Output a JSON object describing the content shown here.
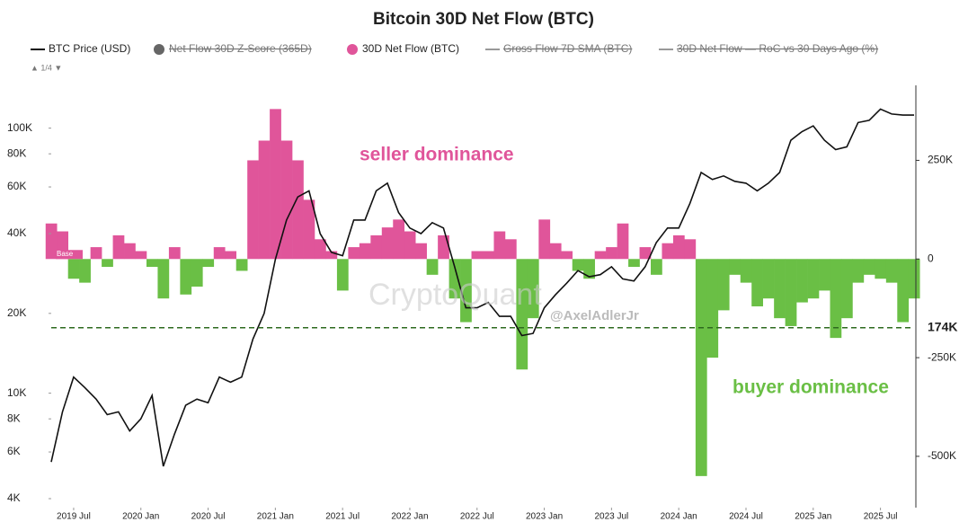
{
  "chart_data": {
    "type": "dual-axis",
    "title": "Bitcoin 30D Net Flow (BTC)",
    "pager": "▲ 1/4 ▼",
    "inactive_legend": [
      "Net Flow 30D Z-Score (365D)",
      "Gross Flow 7D SMA (BTC)",
      "30D Net Flow — RoC vs 30 Days Ago (%)"
    ],
    "annotations": [
      "seller dominance",
      "buyer dominance",
      "Base"
    ],
    "watermarks": [
      "CryptoQuant",
      "@AxelAdlerJr"
    ],
    "reference_line": {
      "value": -174000,
      "label": "174K"
    },
    "x": [
      "2019-05",
      "2019-06",
      "2019-07",
      "2019-08",
      "2019-09",
      "2019-10",
      "2019-11",
      "2019-12",
      "2020-01",
      "2020-02",
      "2020-03",
      "2020-04",
      "2020-05",
      "2020-06",
      "2020-07",
      "2020-08",
      "2020-09",
      "2020-10",
      "2020-11",
      "2020-12",
      "2021-01",
      "2021-02",
      "2021-03",
      "2021-04",
      "2021-05",
      "2021-06",
      "2021-07",
      "2021-08",
      "2021-09",
      "2021-10",
      "2021-11",
      "2021-12",
      "2022-01",
      "2022-02",
      "2022-03",
      "2022-04",
      "2022-05",
      "2022-06",
      "2022-07",
      "2022-08",
      "2022-09",
      "2022-10",
      "2022-11",
      "2022-12",
      "2023-01",
      "2023-02",
      "2023-03",
      "2023-04",
      "2023-05",
      "2023-06",
      "2023-07",
      "2023-08",
      "2023-09",
      "2023-10",
      "2023-11",
      "2023-12",
      "2024-01",
      "2024-02",
      "2024-03",
      "2024-04",
      "2024-05",
      "2024-06",
      "2024-07",
      "2024-08",
      "2024-09",
      "2024-10",
      "2024-11",
      "2024-12",
      "2025-01",
      "2025-02",
      "2025-03",
      "2025-04",
      "2025-05",
      "2025-06",
      "2025-07",
      "2025-08",
      "2025-09",
      "2025-10"
    ],
    "xlim": [
      "2019-05",
      "2025-10"
    ],
    "xticks": [
      {
        "value": "2019-07",
        "label": "2019 Jul"
      },
      {
        "value": "2020-01",
        "label": "2020 Jan"
      },
      {
        "value": "2020-07",
        "label": "2020 Jul"
      },
      {
        "value": "2021-01",
        "label": "2021 Jan"
      },
      {
        "value": "2021-07",
        "label": "2021 Jul"
      },
      {
        "value": "2022-01",
        "label": "2022 Jan"
      },
      {
        "value": "2022-07",
        "label": "2022 Jul"
      },
      {
        "value": "2023-01",
        "label": "2023 Jan"
      },
      {
        "value": "2023-07",
        "label": "2023 Jul"
      },
      {
        "value": "2024-01",
        "label": "2024 Jan"
      },
      {
        "value": "2024-07",
        "label": "2024 Jul"
      },
      {
        "value": "2025-01",
        "label": "2025 Jan"
      },
      {
        "value": "2025-07",
        "label": "2025 Jul"
      }
    ],
    "ylim": [
      3700,
      145000
    ],
    "log_y": true,
    "yticks": [
      {
        "value": 4000,
        "label": "4K"
      },
      {
        "value": 6000,
        "label": "6K"
      },
      {
        "value": 8000,
        "label": "8K"
      },
      {
        "value": 10000,
        "label": "10K"
      },
      {
        "value": 20000,
        "label": "20K"
      },
      {
        "value": 40000,
        "label": "40K"
      },
      {
        "value": 60000,
        "label": "60K"
      },
      {
        "value": 80000,
        "label": "80K"
      },
      {
        "value": 100000,
        "label": "100K"
      }
    ],
    "y2lim": [
      -630000,
      440000
    ],
    "y2ticks": [
      {
        "value": 250000,
        "label": "250K"
      },
      0,
      {
        "value": -250000,
        "label": "-250K"
      },
      {
        "value": -500000,
        "label": "-500K"
      }
    ],
    "series": [
      {
        "name": "BTC Price (USD)",
        "type": "line",
        "color": "#111111",
        "axis": "y",
        "values": [
          5500,
          8500,
          11500,
          10500,
          9500,
          8300,
          8500,
          7200,
          8000,
          9800,
          5300,
          7000,
          9000,
          9500,
          9200,
          11500,
          11000,
          11500,
          16000,
          20000,
          32000,
          45000,
          55000,
          58000,
          40000,
          34000,
          33000,
          45000,
          45000,
          58000,
          62000,
          48000,
          42000,
          40000,
          44000,
          42000,
          30000,
          21000,
          21000,
          22000,
          19500,
          19500,
          16500,
          16800,
          21000,
          23500,
          26000,
          29000,
          27500,
          28000,
          30000,
          27000,
          26500,
          30000,
          37000,
          42000,
          42000,
          52000,
          68000,
          64000,
          66000,
          63000,
          62000,
          58000,
          62000,
          68000,
          90000,
          97000,
          102000,
          90000,
          83000,
          85000,
          105000,
          107000,
          118000,
          113000,
          112000,
          112000
        ]
      },
      {
        "name": "30D Net Flow (BTC)",
        "type": "area",
        "color": "#e0559a",
        "negative_color": "#6abf45",
        "axis": "y2",
        "values": [
          90000,
          70000,
          -50000,
          -60000,
          30000,
          -20000,
          60000,
          40000,
          20000,
          -20000,
          -100000,
          30000,
          -90000,
          -70000,
          -20000,
          30000,
          20000,
          -30000,
          250000,
          300000,
          380000,
          300000,
          250000,
          150000,
          50000,
          20000,
          -80000,
          30000,
          40000,
          60000,
          80000,
          100000,
          70000,
          40000,
          -40000,
          60000,
          -100000,
          -160000,
          20000,
          20000,
          70000,
          50000,
          -280000,
          -150000,
          100000,
          40000,
          20000,
          -30000,
          -50000,
          20000,
          30000,
          90000,
          -20000,
          30000,
          -40000,
          40000,
          60000,
          50000,
          -550000,
          -250000,
          -130000,
          -40000,
          -60000,
          -120000,
          -100000,
          -150000,
          -170000,
          -110000,
          -100000,
          -80000,
          -200000,
          -150000,
          -60000,
          -40000,
          -50000,
          -60000,
          -160000,
          -100000
        ]
      }
    ]
  }
}
